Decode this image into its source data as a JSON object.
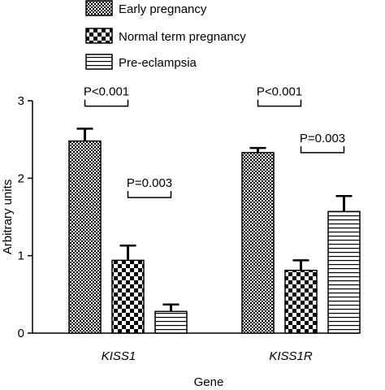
{
  "chart_data": {
    "type": "bar",
    "xlabel": "Gene",
    "ylabel": "Arbitrary units",
    "ylim": [
      0,
      3
    ],
    "yticks": [
      "0",
      "1",
      "2",
      "3"
    ],
    "categories": [
      "KISS1",
      "KISS1R"
    ],
    "legend_position": "top",
    "grid": false,
    "series": [
      {
        "name": "Early pregnancy",
        "pattern": "fine-checker",
        "values": [
          2.48,
          2.33
        ],
        "errors": [
          0.16,
          0.06
        ]
      },
      {
        "name": "Normal term pregnancy",
        "pattern": "coarse-checker",
        "values": [
          0.94,
          0.81
        ],
        "errors": [
          0.19,
          0.13
        ]
      },
      {
        "name": "Pre-eclampsia",
        "pattern": "horizontal-stripes",
        "values": [
          0.28,
          1.57
        ],
        "errors": [
          0.09,
          0.2
        ]
      }
    ],
    "annotations": [
      {
        "label": "P<0.001",
        "category": 0,
        "from_series": 0,
        "to_series": 1,
        "level": 2.93
      },
      {
        "label": "P=0.003",
        "category": 0,
        "from_series": 1,
        "to_series": 2,
        "level": 1.75
      },
      {
        "label": "P<0.001",
        "category": 1,
        "from_series": 0,
        "to_series": 1,
        "level": 2.93
      },
      {
        "label": "P=0.003",
        "category": 1,
        "from_series": 1,
        "to_series": 2,
        "level": 2.33
      }
    ]
  }
}
